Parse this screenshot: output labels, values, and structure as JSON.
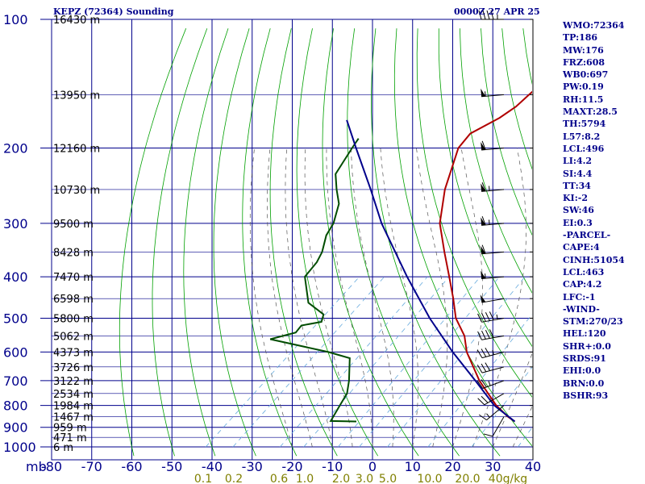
{
  "header": {
    "title": "KEPZ (72364) Sounding",
    "time": "0000Z 27 APR 25"
  },
  "indices": [
    "WMO:72364",
    "TP:186",
    "MW:176",
    "FRZ:608",
    "WB0:697",
    "PW:0.19",
    "RH:11.5",
    "MAXT:28.5",
    "TH:5794",
    "L57:8.2",
    "LCL:496",
    "LI:4.2",
    "SI:4.4",
    "TT:34",
    "KI:-2",
    "SW:46",
    "EI:0.3",
    "-PARCEL-",
    "CAPE:4",
    "CINH:51054",
    "LCL:463",
    "CAP:4.2",
    "LFC:-1",
    "-WIND-",
    "STM:270/23",
    "HEL:120",
    "SHR+:0.0",
    "SRDS:91",
    "EHI:0.0",
    "BRN:0.0",
    "BSHR:93"
  ],
  "chart_data": {
    "type": "skew-t",
    "title": "KEPZ (72364) Sounding",
    "xlabel": "",
    "ylabel": "mb",
    "pressure_range_mb": [
      100,
      1000
    ],
    "temperature_range_c": [
      -80,
      40
    ],
    "pressure_ticks": [
      100,
      200,
      300,
      400,
      500,
      600,
      700,
      800,
      900,
      1000
    ],
    "temperature_ticks": [
      -80,
      -70,
      -60,
      -50,
      -40,
      -30,
      -20,
      -10,
      0,
      10,
      20,
      30,
      40
    ],
    "temperature_tick_labels": [
      "-80",
      "-70",
      "-60",
      "-50",
      "-40",
      "-30",
      "-20",
      "-10",
      "0",
      "10",
      "20",
      "30",
      "40"
    ],
    "mixing_ratio_labels": [
      "0.1",
      "0.2",
      "0.6",
      "1.0",
      "2.0",
      "3.0",
      "5.0",
      "10.0",
      "20.0",
      "40g/kg"
    ],
    "height_labels": [
      {
        "label": "16430 m",
        "p": 100
      },
      {
        "label": "13950 m",
        "p": 150
      },
      {
        "label": "12160 m",
        "p": 200
      },
      {
        "label": "10730 m",
        "p": 250
      },
      {
        "label": "9500 m",
        "p": 300
      },
      {
        "label": "8428 m",
        "p": 350
      },
      {
        "label": "7470 m",
        "p": 400
      },
      {
        "label": "6598 m",
        "p": 450
      },
      {
        "label": "5800 m",
        "p": 500
      },
      {
        "label": "5062 m",
        "p": 550
      },
      {
        "label": "4373 m",
        "p": 600
      },
      {
        "label": "3726 m",
        "p": 650
      },
      {
        "label": "3122 m",
        "p": 700
      },
      {
        "label": "2534 m",
        "p": 750
      },
      {
        "label": "1984 m",
        "p": 800
      },
      {
        "label": "1467 m",
        "p": 850
      },
      {
        "label": "959 m",
        "p": 900
      },
      {
        "label": "471 m",
        "p": 950
      },
      {
        "label": "6 m",
        "p": 1000
      }
    ],
    "series": [
      {
        "name": "",
        "role": "temperature",
        "color": "#b00000",
        "points": [
          {
            "p": 872,
            "t": 28.5
          },
          {
            "p": 850,
            "t": 25.5
          },
          {
            "p": 800,
            "t": 19.5
          },
          {
            "p": 700,
            "t": 8.5
          },
          {
            "p": 600,
            "t": -2.5
          },
          {
            "p": 550,
            "t": -7.5
          },
          {
            "p": 500,
            "t": -14.5
          },
          {
            "p": 450,
            "t": -20.5
          },
          {
            "p": 400,
            "t": -27.5
          },
          {
            "p": 350,
            "t": -35.5
          },
          {
            "p": 300,
            "t": -44.5
          },
          {
            "p": 250,
            "t": -52.5
          },
          {
            "p": 200,
            "t": -60.5
          },
          {
            "p": 185,
            "t": -61.5
          },
          {
            "p": 170,
            "t": -58.5
          },
          {
            "p": 160,
            "t": -57.5
          },
          {
            "p": 150,
            "t": -57.5
          },
          {
            "p": 130,
            "t": -57.5
          },
          {
            "p": 120,
            "t": -61.5
          },
          {
            "p": 100,
            "t": -60.5
          }
        ]
      },
      {
        "name": "",
        "role": "dewpoint",
        "color": "#004c00",
        "points": [
          {
            "p": 872,
            "t": -11
          },
          {
            "p": 870,
            "t": -17.5
          },
          {
            "p": 800,
            "t": -19.5
          },
          {
            "p": 750,
            "t": -21
          },
          {
            "p": 700,
            "t": -24
          },
          {
            "p": 620,
            "t": -30
          },
          {
            "p": 600,
            "t": -37
          },
          {
            "p": 560,
            "t": -55
          },
          {
            "p": 540,
            "t": -50.5
          },
          {
            "p": 520,
            "t": -51
          },
          {
            "p": 510,
            "t": -47
          },
          {
            "p": 490,
            "t": -48.5
          },
          {
            "p": 460,
            "t": -55.5
          },
          {
            "p": 400,
            "t": -63.5
          },
          {
            "p": 370,
            "t": -64.5
          },
          {
            "p": 350,
            "t": -66
          },
          {
            "p": 320,
            "t": -69.5
          },
          {
            "p": 300,
            "t": -71
          },
          {
            "p": 270,
            "t": -75
          },
          {
            "p": 250,
            "t": -79.5
          },
          {
            "p": 230,
            "t": -84
          },
          {
            "p": 200,
            "t": -87
          },
          {
            "p": 190,
            "t": -88
          }
        ]
      },
      {
        "name": "",
        "role": "parcel",
        "color": "#00008b",
        "points": [
          {
            "p": 872,
            "t": 28.5
          },
          {
            "p": 800,
            "t": 19
          },
          {
            "p": 700,
            "t": 7.5
          },
          {
            "p": 600,
            "t": -6
          },
          {
            "p": 500,
            "t": -21
          },
          {
            "p": 400,
            "t": -38
          },
          {
            "p": 300,
            "t": -59
          },
          {
            "p": 250,
            "t": -71
          },
          {
            "p": 200,
            "t": -86
          },
          {
            "p": 172,
            "t": -96
          }
        ]
      }
    ],
    "wind_profile": [
      {
        "p": 850,
        "dir": 210,
        "spd": 10
      },
      {
        "p": 800,
        "dir": 230,
        "spd": 15
      },
      {
        "p": 750,
        "dir": 240,
        "spd": 20
      },
      {
        "p": 700,
        "dir": 250,
        "spd": 25
      },
      {
        "p": 650,
        "dir": 255,
        "spd": 30
      },
      {
        "p": 600,
        "dir": 255,
        "spd": 35
      },
      {
        "p": 550,
        "dir": 260,
        "spd": 40
      },
      {
        "p": 500,
        "dir": 260,
        "spd": 45
      },
      {
        "p": 450,
        "dir": 260,
        "spd": 50
      },
      {
        "p": 400,
        "dir": 265,
        "spd": 55
      },
      {
        "p": 350,
        "dir": 265,
        "spd": 60
      },
      {
        "p": 300,
        "dir": 265,
        "spd": 65
      },
      {
        "p": 250,
        "dir": 265,
        "spd": 65
      },
      {
        "p": 200,
        "dir": 265,
        "spd": 60
      },
      {
        "p": 150,
        "dir": 265,
        "spd": 55
      },
      {
        "p": 100,
        "dir": 270,
        "spd": 45
      }
    ],
    "colors": {
      "grid": "#00008b",
      "dry_adiabats": "#00a000",
      "moist_adiabats": "#555555",
      "mixing_ratio": "#66aadd",
      "axis_labels": "#00008b",
      "mixing_labels": "#808000",
      "wind": "#000000"
    },
    "grid": true
  }
}
